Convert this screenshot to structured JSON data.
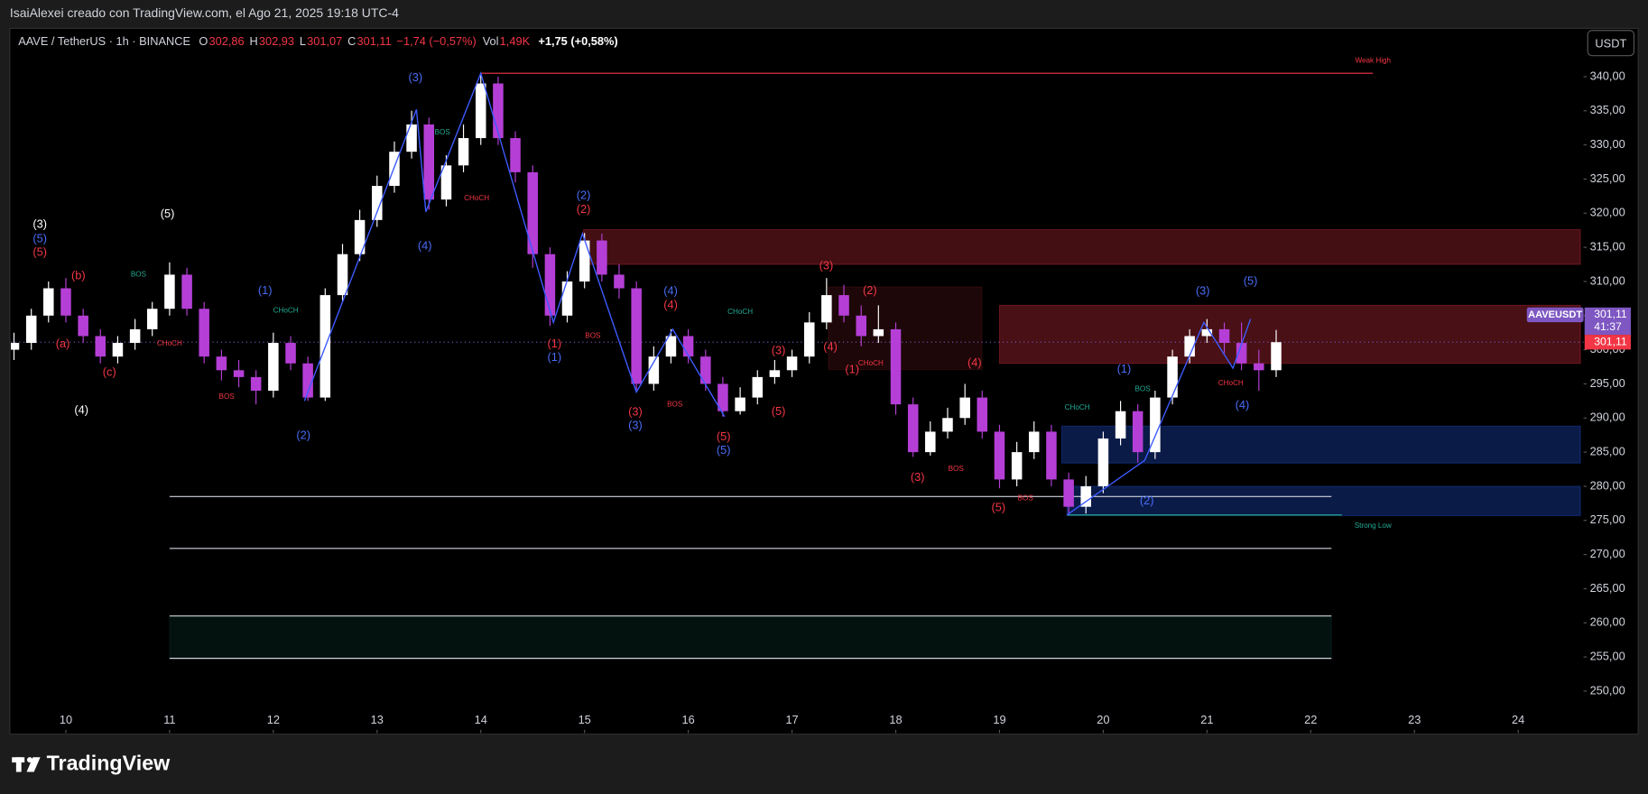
{
  "header": {
    "watermark": "IsaiAlexei creado con TradingView.com, el Ago 21, 2025 19:18 UTC-4",
    "symbol": "AAVE / TetherUS · 1h · BINANCE",
    "ohlc": [
      {
        "label": "O",
        "value": "302,86"
      },
      {
        "label": "H",
        "value": "302,93"
      },
      {
        "label": "L",
        "value": "301,07"
      },
      {
        "label": "C",
        "value": "301,11"
      }
    ],
    "change": "−1,74 (−0,57%)",
    "volume_label": "Vol",
    "volume": "1,49K",
    "extra": "+1,75 (+0,58%)",
    "currency": "USDT"
  },
  "chart_data": {
    "type": "candlestick",
    "x": [
      9.5,
      9.667,
      9.833,
      10,
      10.167,
      10.333,
      10.5,
      10.667,
      10.833,
      11,
      11.167,
      11.333,
      11.5,
      11.667,
      11.833,
      12,
      12.167,
      12.333,
      12.5,
      12.667,
      12.833,
      13,
      13.167,
      13.333,
      13.5,
      13.667,
      13.833,
      14,
      14.167,
      14.333,
      14.5,
      14.667,
      14.833,
      15,
      15.167,
      15.333,
      15.5,
      15.667,
      15.833,
      16,
      16.167,
      16.333,
      16.5,
      16.667,
      16.833,
      17,
      17.167,
      17.333,
      17.5,
      17.667,
      17.833,
      18,
      18.167,
      18.333,
      18.5,
      18.667,
      18.833,
      19,
      19.167,
      19.333,
      19.5,
      19.667,
      19.833,
      20,
      20.167,
      20.333,
      20.5,
      20.667,
      20.833,
      21,
      21.167,
      21.333,
      21.5,
      21.667
    ],
    "open": [
      300,
      301,
      305,
      309,
      305,
      302,
      299,
      301,
      303,
      306,
      311,
      306,
      299,
      297,
      296,
      294,
      301,
      298,
      293,
      308,
      314,
      319,
      324,
      329,
      333,
      322,
      327,
      331,
      339,
      331,
      326,
      314,
      305,
      310,
      316,
      311,
      309,
      295,
      299,
      302,
      299,
      295,
      291,
      293,
      296,
      297,
      299,
      304,
      308,
      305,
      302,
      303,
      292,
      285,
      288,
      290,
      293,
      288,
      281,
      285,
      288,
      281,
      277,
      280,
      287,
      291,
      285,
      293,
      299,
      302,
      303,
      301,
      298,
      297
    ],
    "high": [
      302.5,
      306,
      310,
      310.5,
      306,
      303,
      302,
      304.5,
      307,
      312.8,
      312,
      307,
      300,
      298.5,
      297,
      302.5,
      302,
      299,
      309,
      315.5,
      320.5,
      325.5,
      330.5,
      335,
      334,
      328.5,
      333,
      340.5,
      340,
      332,
      327,
      315,
      311.5,
      317.1,
      317,
      312.5,
      310,
      300.5,
      303,
      303,
      300,
      296,
      294.5,
      297,
      298.5,
      300,
      305.5,
      310.5,
      309.5,
      306.5,
      306.5,
      304,
      293,
      289.5,
      291.5,
      295,
      294,
      289,
      286.5,
      289.5,
      289,
      282,
      281.5,
      288,
      292.5,
      292,
      294,
      300,
      303,
      304.5,
      304,
      304,
      300,
      302.9
    ],
    "low": [
      298.5,
      300,
      304,
      304,
      301,
      298,
      298,
      300,
      302,
      305,
      305,
      298,
      295.5,
      294.5,
      292,
      293,
      297,
      292.5,
      292.5,
      307,
      313,
      318,
      323,
      328,
      320.5,
      321,
      326,
      330,
      330,
      324.5,
      312,
      303.5,
      304,
      309,
      310,
      307.5,
      293.8,
      294,
      298,
      298,
      294,
      290.2,
      290.5,
      292,
      295,
      296,
      298,
      303,
      304,
      300.5,
      301,
      290.5,
      284.3,
      284.5,
      287,
      289,
      287,
      279.7,
      280,
      284,
      280,
      275.8,
      276,
      279,
      286,
      283.5,
      284,
      292,
      298,
      301,
      299.5,
      297,
      294,
      296
    ],
    "close": [
      301,
      305,
      309,
      305,
      302,
      299,
      301,
      303,
      306,
      311,
      306,
      299,
      297,
      296,
      294,
      301,
      298,
      293,
      308,
      314,
      319,
      324,
      329,
      333,
      322,
      327,
      331,
      339,
      331,
      326,
      314,
      305,
      310,
      316,
      311,
      309,
      295,
      299,
      302,
      299,
      295,
      291,
      293,
      296,
      297,
      299,
      304,
      308,
      305,
      302,
      303,
      292,
      285,
      288,
      290,
      293,
      288,
      281,
      285,
      288,
      281,
      277,
      280,
      287,
      291,
      285,
      293,
      299,
      302,
      303,
      301,
      298,
      297,
      301.11
    ],
    "up_color": "#ffffff",
    "down_color": "#b53fd6",
    "price_line_color": "#7e57c2",
    "xlim": [
      9.47,
      24.63
    ],
    "xticks": [
      10,
      11,
      12,
      13,
      14,
      15,
      16,
      17,
      18,
      19,
      20,
      21,
      22,
      23,
      24
    ],
    "ylim": [
      243.85,
      346.92
    ],
    "yticks": [
      {
        "value": 250,
        "label": "250,00"
      },
      {
        "value": 255,
        "label": "255,00"
      },
      {
        "value": 260,
        "label": "260,00"
      },
      {
        "value": 265,
        "label": "265,00"
      },
      {
        "value": 270,
        "label": "270,00"
      },
      {
        "value": 275,
        "label": "275,00"
      },
      {
        "value": 280,
        "label": "280,00"
      },
      {
        "value": 285,
        "label": "285,00"
      },
      {
        "value": 290,
        "label": "290,00"
      },
      {
        "value": 295,
        "label": "295,00"
      },
      {
        "value": 300,
        "label": "300,00"
      },
      {
        "value": 305,
        "label": "305,00"
      },
      {
        "value": 310,
        "label": "310,00"
      },
      {
        "value": 315,
        "label": "315,00"
      },
      {
        "value": 320,
        "label": "320,00"
      },
      {
        "value": 325,
        "label": "325,00"
      },
      {
        "value": 330,
        "label": "330,00"
      },
      {
        "value": 335,
        "label": "335,00"
      },
      {
        "value": 340,
        "label": "340,00"
      }
    ],
    "grid": false,
    "zigzag": {
      "color": "#3d5afe",
      "x": [
        12.3,
        13.38,
        13.47,
        14.0,
        14.7,
        14.98,
        15.5,
        15.85,
        16.35,
        null,
        19.65,
        20.4,
        20.97,
        21.25,
        21.42
      ],
      "y": [
        292.5,
        335.2,
        320.2,
        340.5,
        304,
        317,
        293.8,
        303,
        290.2,
        null,
        275.8,
        283.8,
        304,
        297.3,
        304.5
      ]
    },
    "zones": [
      {
        "x0": 14.99,
        "x1": 24.6,
        "y0": 312.5,
        "y1": 317.6,
        "fill": "rgba(242,54,69,0.28)"
      },
      {
        "x0": 19.0,
        "x1": 24.6,
        "y0": 298,
        "y1": 306.5,
        "fill": "rgba(242,54,69,0.30)"
      },
      {
        "x0": 17.35,
        "x1": 18.83,
        "y0": 297.1,
        "y1": 309.2,
        "fill": "rgba(242,54,69,0.12)"
      },
      {
        "x0": 19.6,
        "x1": 24.6,
        "y0": 283.4,
        "y1": 288.8,
        "fill": "rgba(41,98,255,0.28)"
      },
      {
        "x0": 19.65,
        "x1": 24.6,
        "y0": 275.7,
        "y1": 280,
        "fill": "rgba(41,98,255,0.28)"
      },
      {
        "x0": 11.0,
        "x1": 22.2,
        "y0": 254.8,
        "y1": 261,
        "fill": "rgba(34,171,148,0.10)"
      }
    ],
    "levels": [
      {
        "x0": 14.0,
        "x1": 22.6,
        "y": 340.5,
        "color": "#f23645"
      },
      {
        "x0": 19.65,
        "x1": 22.3,
        "y": 275.8,
        "color": "#22ab94"
      },
      {
        "x0": 11.0,
        "x1": 22.2,
        "y": 278.5,
        "color": "#d1d4dc"
      },
      {
        "x0": 11.0,
        "x1": 22.2,
        "y": 270.9,
        "color": "#d1d4dc"
      },
      {
        "x0": 11.0,
        "x1": 22.2,
        "y": 261,
        "color": "#d1d4dc"
      },
      {
        "x0": 11.0,
        "x1": 22.2,
        "y": 254.8,
        "color": "#d1d4dc"
      }
    ],
    "annotations": [
      {
        "text": "(3)",
        "x": 9.75,
        "y": 318.3,
        "color": "#ffffff"
      },
      {
        "text": "(5)",
        "x": 9.75,
        "y": 316.2,
        "color": "#4a6cf7"
      },
      {
        "text": "(5)",
        "x": 9.75,
        "y": 314.2,
        "color": "#f23645"
      },
      {
        "text": "(4)",
        "x": 10.15,
        "y": 291.1,
        "color": "#ffffff"
      },
      {
        "text": "(5)",
        "x": 10.98,
        "y": 319.8,
        "color": "#ffffff"
      },
      {
        "text": "(b)",
        "x": 10.12,
        "y": 310.8,
        "color": "#f23645"
      },
      {
        "text": "(a)",
        "x": 9.97,
        "y": 300.8,
        "color": "#f23645"
      },
      {
        "text": "(c)",
        "x": 10.42,
        "y": 296.6,
        "color": "#f23645"
      },
      {
        "text": "(1)",
        "x": 11.92,
        "y": 308.6,
        "color": "#4a6cf7"
      },
      {
        "text": "(2)",
        "x": 12.29,
        "y": 287.4,
        "color": "#4a6cf7"
      },
      {
        "text": "(3)",
        "x": 13.37,
        "y": 339.8,
        "color": "#4a6cf7"
      },
      {
        "text": "(4)",
        "x": 13.46,
        "y": 315.1,
        "color": "#4a6cf7"
      },
      {
        "text": "(2)",
        "x": 14.99,
        "y": 322.5,
        "color": "#4a6cf7"
      },
      {
        "text": "(2)",
        "x": 14.99,
        "y": 320.5,
        "color": "#f23645"
      },
      {
        "text": "(1)",
        "x": 14.71,
        "y": 300.8,
        "color": "#f23645"
      },
      {
        "text": "(1)",
        "x": 14.71,
        "y": 298.8,
        "color": "#4a6cf7"
      },
      {
        "text": "(3)",
        "x": 15.49,
        "y": 290.8,
        "color": "#f23645"
      },
      {
        "text": "(3)",
        "x": 15.49,
        "y": 288.8,
        "color": "#4a6cf7"
      },
      {
        "text": "(4)",
        "x": 15.83,
        "y": 308.5,
        "color": "#4a6cf7"
      },
      {
        "text": "(4)",
        "x": 15.83,
        "y": 306.5,
        "color": "#f23645"
      },
      {
        "text": "(5)",
        "x": 16.34,
        "y": 287.2,
        "color": "#f23645"
      },
      {
        "text": "(5)",
        "x": 16.34,
        "y": 285.2,
        "color": "#4a6cf7"
      },
      {
        "text": "(3)",
        "x": 16.87,
        "y": 299.8,
        "color": "#f23645"
      },
      {
        "text": "(5)",
        "x": 16.87,
        "y": 290.9,
        "color": "#f23645"
      },
      {
        "text": "(4)",
        "x": 17.37,
        "y": 300.3,
        "color": "#f23645"
      },
      {
        "text": "(3)",
        "x": 17.33,
        "y": 312.2,
        "color": "#f23645"
      },
      {
        "text": "(2)",
        "x": 17.75,
        "y": 308.6,
        "color": "#f23645"
      },
      {
        "text": "(1)",
        "x": 17.58,
        "y": 297,
        "color": "#f23645"
      },
      {
        "text": "(4)",
        "x": 18.76,
        "y": 298,
        "color": "#f23645"
      },
      {
        "text": "(3)",
        "x": 18.21,
        "y": 281.2,
        "color": "#f23645"
      },
      {
        "text": "(5)",
        "x": 18.99,
        "y": 276.8,
        "color": "#f23645"
      },
      {
        "text": "(1)",
        "x": 20.2,
        "y": 297.1,
        "color": "#4a6cf7"
      },
      {
        "text": "(2)",
        "x": 20.42,
        "y": 277.8,
        "color": "#4a6cf7"
      },
      {
        "text": "(3)",
        "x": 20.96,
        "y": 308.5,
        "color": "#4a6cf7"
      },
      {
        "text": "(5)",
        "x": 21.42,
        "y": 310,
        "color": "#4a6cf7"
      },
      {
        "text": "(4)",
        "x": 21.34,
        "y": 291.8,
        "color": "#4a6cf7"
      },
      {
        "text": "BOS",
        "x": 10.7,
        "y": 311,
        "color": "#22ab94"
      },
      {
        "text": "CHoCH",
        "x": 12.12,
        "y": 305.7,
        "color": "#22ab94"
      },
      {
        "text": "CHoCH",
        "x": 11.0,
        "y": 300.9,
        "color": "#f23645"
      },
      {
        "text": "BOS",
        "x": 11.55,
        "y": 293.1,
        "color": "#f23645"
      },
      {
        "text": "BOS",
        "x": 13.63,
        "y": 331.8,
        "color": "#22ab94"
      },
      {
        "text": "CHoCH",
        "x": 13.96,
        "y": 322.2,
        "color": "#f23645"
      },
      {
        "text": "BOS",
        "x": 15.08,
        "y": 302,
        "color": "#f23645"
      },
      {
        "text": "CHoCH",
        "x": 16.5,
        "y": 305.5,
        "color": "#22ab94"
      },
      {
        "text": "BOS",
        "x": 15.87,
        "y": 292,
        "color": "#f23645"
      },
      {
        "text": "CHoCH",
        "x": 17.76,
        "y": 298,
        "color": "#f23645"
      },
      {
        "text": "BOS",
        "x": 18.58,
        "y": 282.5,
        "color": "#f23645"
      },
      {
        "text": "BOS",
        "x": 19.25,
        "y": 278.2,
        "color": "#f23645"
      },
      {
        "text": "CHoCH",
        "x": 19.75,
        "y": 291.5,
        "color": "#22ab94"
      },
      {
        "text": "BOS",
        "x": 20.38,
        "y": 294.2,
        "color": "#22ab94"
      },
      {
        "text": "CHoCH",
        "x": 21.23,
        "y": 295.1,
        "color": "#f23645"
      },
      {
        "text": "Weak High",
        "x": 22.6,
        "y": 342.3,
        "color": "#f23645"
      },
      {
        "text": "Strong Low",
        "x": 22.6,
        "y": 274.2,
        "color": "#22ab94"
      }
    ],
    "price_tags": {
      "symbol": "AAVEUSDT",
      "price": "301,11",
      "countdown": "41:37",
      "last": "301,11"
    }
  },
  "footer": {
    "brand": "TradingView"
  }
}
